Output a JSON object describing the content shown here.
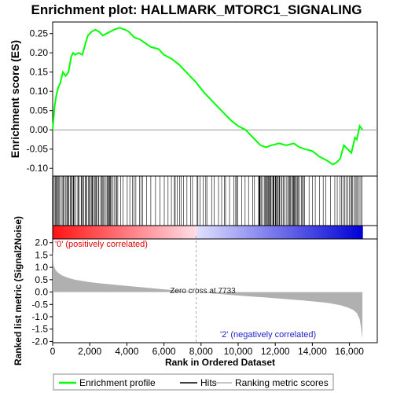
{
  "chart_data": {
    "type": "line",
    "title": "Enrichment plot: HALLMARK_MTORC1_SIGNALING",
    "ylabel_top": "Enrichment score (ES)",
    "ylabel_bottom": "Ranked list metric (Signal2Noise)",
    "xlabel": "Rank in Ordered Dataset",
    "xlim": [
      0,
      17500
    ],
    "x_ticks": [
      "0",
      "2,000",
      "4,000",
      "6,000",
      "8,000",
      "10,000",
      "12,000",
      "14,000",
      "16,000"
    ],
    "x_tick_values": [
      0,
      2000,
      4000,
      6000,
      8000,
      10000,
      12000,
      14000,
      16000
    ],
    "es_ylim": [
      -0.12,
      0.28
    ],
    "es_ticks": [
      "-0.10",
      "-0.05",
      "0.00",
      "0.05",
      "0.10",
      "0.15",
      "0.20",
      "0.25"
    ],
    "es_tick_values": [
      -0.1,
      -0.05,
      0.0,
      0.05,
      0.1,
      0.15,
      0.2,
      0.25
    ],
    "metric_ylim": [
      -2.05,
      2.15
    ],
    "metric_ticks": [
      "-2.0",
      "-1.5",
      "-1.0",
      "-0.5",
      "0.0",
      "0.5",
      "1.0",
      "1.5",
      "2.0"
    ],
    "metric_tick_values": [
      -2.0,
      -1.5,
      -1.0,
      -0.5,
      0.0,
      0.5,
      1.0,
      1.5,
      2.0
    ],
    "zero_cross_label": "Zero cross at 7733",
    "zero_cross_rank": 7733,
    "positive_label": "'0' (positively correlated)",
    "negative_label": "'2' (negatively correlated)",
    "total_ranks": 16700,
    "series": [
      {
        "name": "Enrichment profile",
        "color": "#00ff00",
        "x": [
          0,
          100,
          200,
          300,
          400,
          550,
          700,
          850,
          1000,
          1100,
          1200,
          1400,
          1600,
          1800,
          1900,
          2000,
          2100,
          2300,
          2500,
          2700,
          2900,
          3100,
          3300,
          3600,
          3900,
          4100,
          4400,
          4700,
          5000,
          5300,
          5700,
          6000,
          6400,
          6800,
          7200,
          7700,
          8200,
          8700,
          9200,
          9600,
          10000,
          10400,
          10800,
          11200,
          11500,
          11800,
          12200,
          12600,
          13000,
          13300,
          13600,
          14000,
          14400,
          14800,
          15100,
          15300,
          15500,
          15700,
          15900,
          16100,
          16300,
          16400,
          16550,
          16700
        ],
        "y": [
          0.0,
          0.06,
          0.09,
          0.11,
          0.12,
          0.15,
          0.14,
          0.15,
          0.19,
          0.2,
          0.195,
          0.2,
          0.195,
          0.23,
          0.245,
          0.25,
          0.255,
          0.26,
          0.255,
          0.245,
          0.25,
          0.255,
          0.26,
          0.265,
          0.26,
          0.255,
          0.24,
          0.235,
          0.225,
          0.215,
          0.21,
          0.195,
          0.185,
          0.17,
          0.15,
          0.125,
          0.095,
          0.07,
          0.045,
          0.025,
          0.01,
          0.0,
          -0.02,
          -0.04,
          -0.045,
          -0.04,
          -0.035,
          -0.04,
          -0.035,
          -0.045,
          -0.05,
          -0.055,
          -0.07,
          -0.08,
          -0.09,
          -0.085,
          -0.075,
          -0.04,
          -0.05,
          -0.06,
          -0.02,
          -0.025,
          0.01,
          0.0
        ]
      }
    ],
    "metric_curve": {
      "name": "Ranking metric scores",
      "color": "#b0b0b0",
      "x": [
        0,
        50,
        150,
        300,
        500,
        800,
        1200,
        2000,
        3000,
        4000,
        5000,
        6000,
        7000,
        7733,
        8500,
        9500,
        10500,
        11500,
        12500,
        13500,
        14500,
        15000,
        15500,
        15900,
        16200,
        16400,
        16550,
        16620,
        16700
      ],
      "y": [
        1.7,
        1.1,
        0.9,
        0.78,
        0.68,
        0.58,
        0.5,
        0.4,
        0.32,
        0.25,
        0.18,
        0.11,
        0.04,
        0.0,
        -0.05,
        -0.11,
        -0.17,
        -0.22,
        -0.28,
        -0.34,
        -0.41,
        -0.46,
        -0.53,
        -0.62,
        -0.72,
        -0.85,
        -1.1,
        -1.4,
        -1.9
      ]
    },
    "legend": [
      "Enrichment profile",
      "Hits",
      "Ranking metric scores"
    ],
    "legend_position": "bottom"
  }
}
